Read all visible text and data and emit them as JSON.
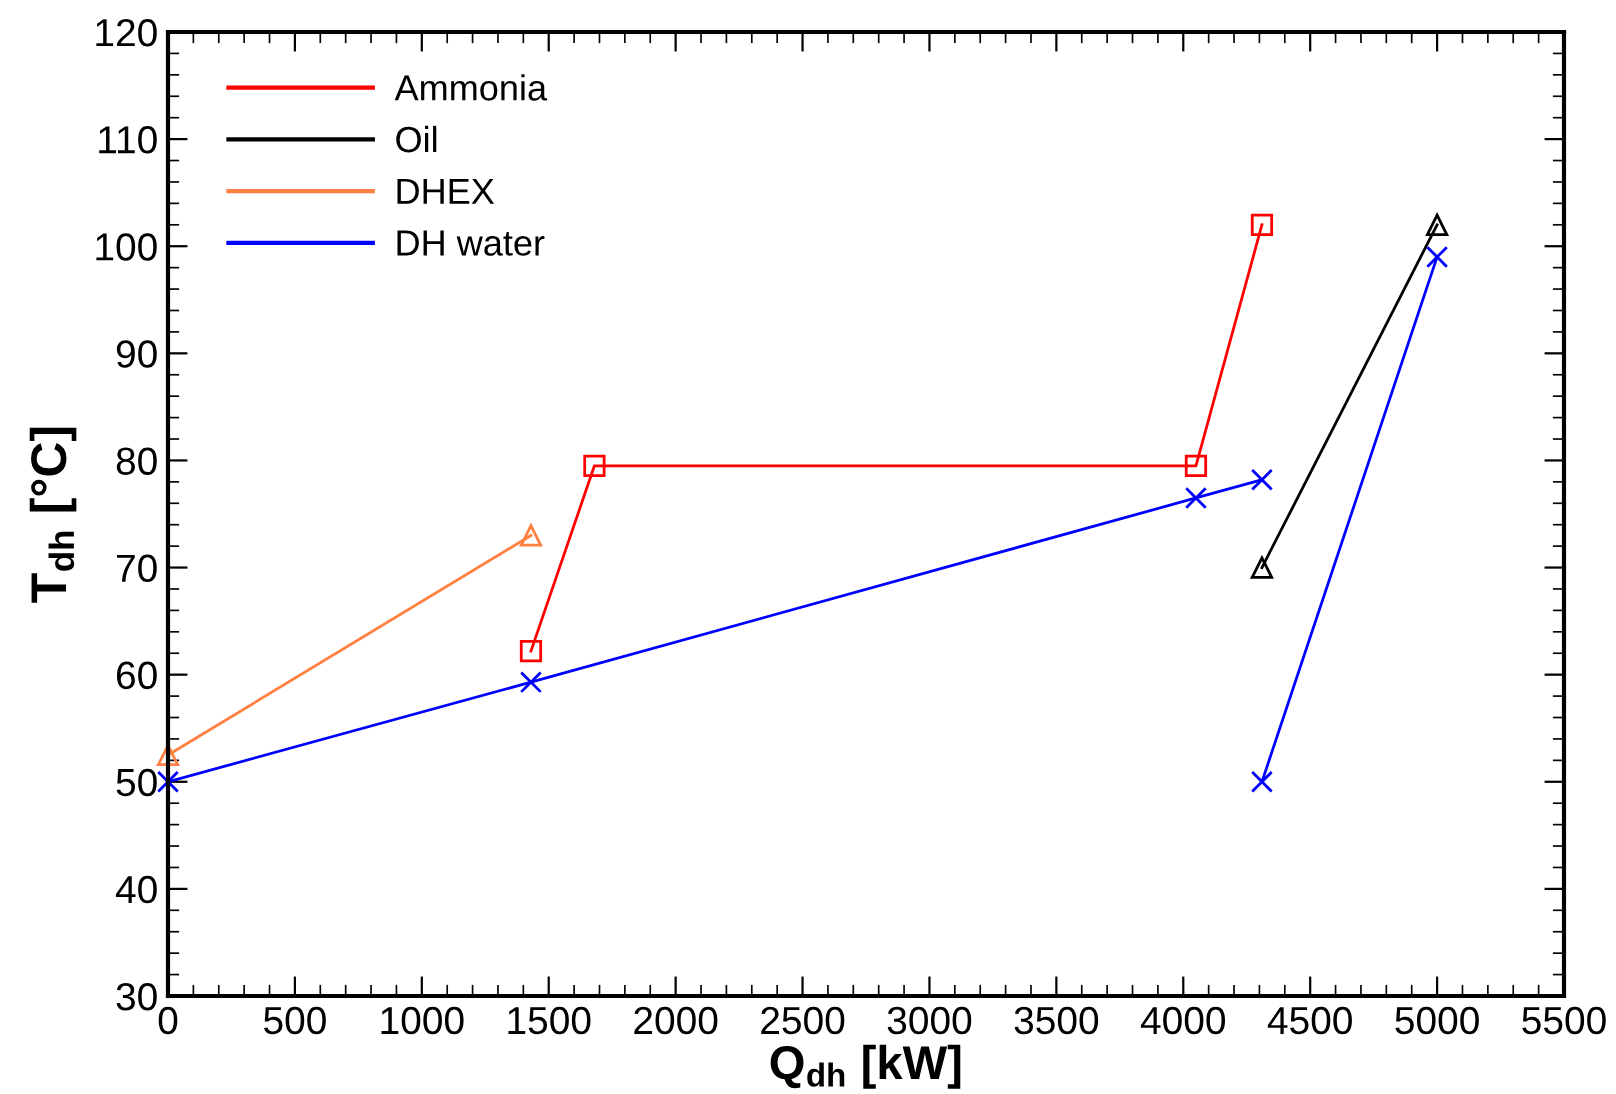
{
  "chart_data": {
    "type": "line",
    "xlabel": "Q$_{dh}$ [kW]",
    "ylabel": "T$_{dh}$ [°C]",
    "xlim": [
      0,
      5500
    ],
    "xticks": [
      0,
      500,
      1000,
      1500,
      2000,
      2500,
      3000,
      3500,
      4000,
      4500,
      5000,
      5500
    ],
    "ylim": [
      30,
      120
    ],
    "yticks": [
      30,
      40,
      50,
      60,
      70,
      80,
      90,
      100,
      110,
      120
    ],
    "grid": false,
    "legend": "top left",
    "series": [
      {
        "name": "Ammonia",
        "color": "#ff0000",
        "marker": "square",
        "x": [
          1430,
          1680,
          4050,
          4310
        ],
        "values": [
          62.2,
          79.5,
          79.5,
          102
        ]
      },
      {
        "name": "Oil",
        "color": "#000000",
        "marker": "triangle",
        "x": [
          4310,
          5000
        ],
        "values": [
          70,
          102
        ]
      },
      {
        "name": "DHEX",
        "color": "#ff8040",
        "marker": "triangle",
        "x": [
          0,
          1430
        ],
        "values": [
          52.5,
          73
        ]
      },
      {
        "name": "DH water",
        "color": "#0000ff",
        "marker": "cross",
        "x": [
          0,
          1430,
          4050,
          4310
        ],
        "values": [
          50,
          59.3,
          76.5,
          78.2
        ]
      },
      {
        "color": "#0000ff",
        "marker": "cross",
        "x": [
          4310,
          5000
        ],
        "values": [
          50,
          99
        ]
      }
    ]
  }
}
